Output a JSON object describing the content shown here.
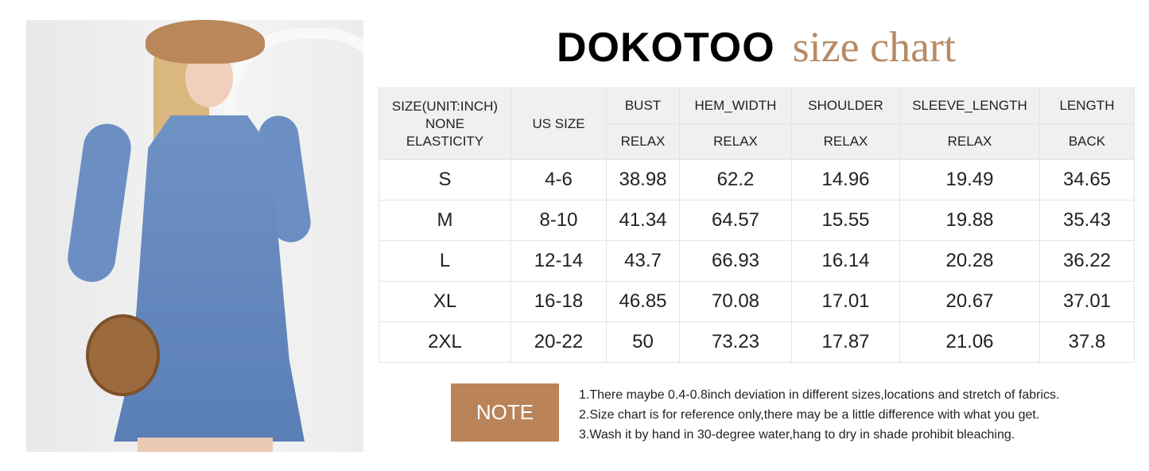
{
  "title": {
    "brand": "DOKOTOO",
    "subtitle": "size chart"
  },
  "colors": {
    "accent": "#bb8458",
    "title_accent": "#b88a63",
    "header_bg": "#f0f0f0"
  },
  "table": {
    "header_row1": [
      "SIZE(UNIT:INCH)",
      "US SIZE",
      "BUST",
      "HEM_WIDTH",
      "SHOULDER",
      "SLEEVE_LENGTH",
      "LENGTH"
    ],
    "header_row1_sub": "NONE ELASTICITY",
    "header_row2": [
      "RELAX",
      "RELAX",
      "RELAX",
      "RELAX",
      "BACK"
    ],
    "rows": [
      [
        "S",
        "4-6",
        "38.98",
        "62.2",
        "14.96",
        "19.49",
        "34.65"
      ],
      [
        "M",
        "8-10",
        "41.34",
        "64.57",
        "15.55",
        "19.88",
        "35.43"
      ],
      [
        "L",
        "12-14",
        "43.7",
        "66.93",
        "16.14",
        "20.28",
        "36.22"
      ],
      [
        "XL",
        "16-18",
        "46.85",
        "70.08",
        "17.01",
        "20.67",
        "37.01"
      ],
      [
        "2XL",
        "20-22",
        "50",
        "73.23",
        "17.87",
        "21.06",
        "37.8"
      ]
    ]
  },
  "note": {
    "label": "NOTE",
    "lines": [
      "1.There maybe 0.4-0.8inch deviation in different sizes,locations and stretch of fabrics.",
      "2.Size chart is for reference only,there may be a little difference with what you get.",
      "3.Wash it by hand in 30-degree water,hang to dry in shade prohibit bleaching."
    ]
  }
}
